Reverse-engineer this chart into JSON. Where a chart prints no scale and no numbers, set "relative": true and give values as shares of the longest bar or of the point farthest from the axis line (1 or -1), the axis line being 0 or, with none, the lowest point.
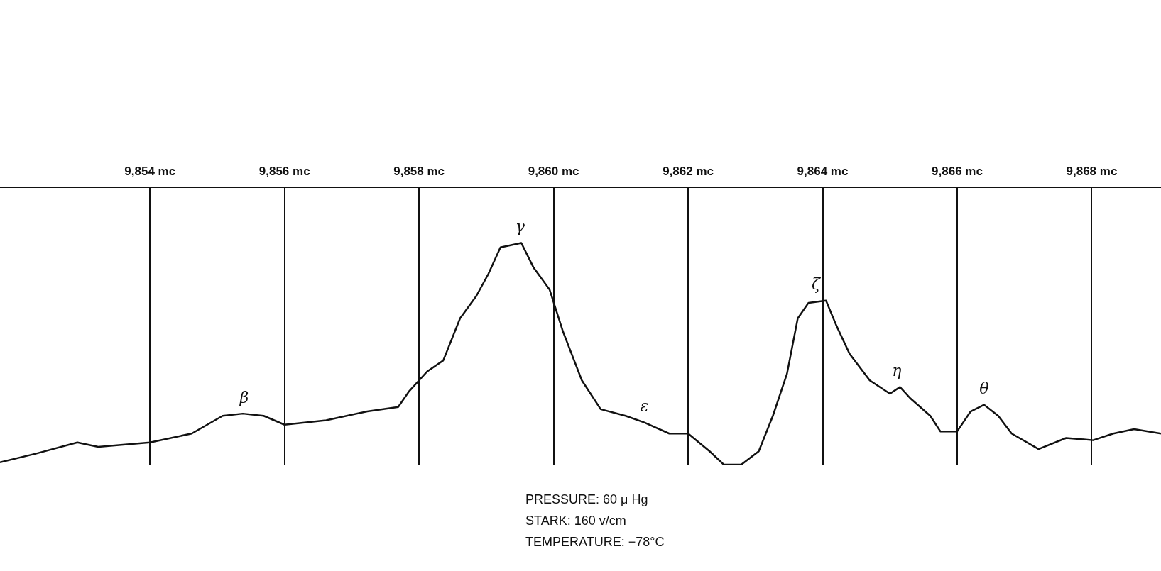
{
  "chart_data": {
    "type": "line",
    "relative": true,
    "tick_labels": "x",
    "grid": "x",
    "legend": false,
    "marker": "none",
    "line_style": "solid",
    "xlim": [
      9851.77,
      9869.03
    ],
    "xticks": [
      {
        "value": 9854,
        "label": "9,854 mc"
      },
      {
        "value": 9856,
        "label": "9,856 mc"
      },
      {
        "value": 9858,
        "label": "9,858 mc"
      },
      {
        "value": 9860,
        "label": "9,860 mc"
      },
      {
        "value": 9862,
        "label": "9,862 mc"
      },
      {
        "value": 9864,
        "label": "9,864 mc"
      },
      {
        "value": 9866,
        "label": "9,866 mc"
      },
      {
        "value": 9868,
        "label": "9,868 mc"
      }
    ],
    "series": [
      {
        "color": "#111111",
        "x": [
          9851.77,
          9852.31,
          9852.92,
          9853.23,
          9854.0,
          9854.62,
          9855.08,
          9855.38,
          9855.69,
          9856.0,
          9856.62,
          9857.23,
          9857.69,
          9857.85,
          9858.12,
          9858.36,
          9858.61,
          9858.85,
          9859.03,
          9859.21,
          9859.52,
          9859.7,
          9859.94,
          9860.14,
          9860.42,
          9860.7,
          9861.07,
          9861.35,
          9861.72,
          9862.0,
          9862.32,
          9862.53,
          9862.79,
          9863.05,
          9863.26,
          9863.47,
          9863.63,
          9863.79,
          9864.05,
          9864.2,
          9864.4,
          9864.7,
          9865.0,
          9865.15,
          9865.3,
          9865.6,
          9865.75,
          9866.0,
          9866.2,
          9866.4,
          9866.61,
          9866.81,
          9867.21,
          9867.62,
          9868.02,
          9868.32,
          9868.63,
          9869.03
        ],
        "values": [
          0.01,
          0.05,
          0.1,
          0.08,
          0.1,
          0.14,
          0.22,
          0.23,
          0.22,
          0.18,
          0.2,
          0.24,
          0.26,
          0.33,
          0.42,
          0.47,
          0.66,
          0.76,
          0.86,
          0.98,
          1,
          0.89,
          0.79,
          0.6,
          0.38,
          0.25,
          0.22,
          0.19,
          0.14,
          0.14,
          0.06,
          0,
          0,
          0.06,
          0.22,
          0.41,
          0.66,
          0.73,
          0.74,
          0.63,
          0.5,
          0.38,
          0.32,
          0.35,
          0.3,
          0.22,
          0.15,
          0.15,
          0.24,
          0.27,
          0.22,
          0.14,
          0.07,
          0.12,
          0.11,
          0.14,
          0.16,
          0.14
        ]
      }
    ],
    "annotations": [
      {
        "text": "β",
        "x": 9855.4,
        "y": 0.23
      },
      {
        "text": "γ",
        "x": 9859.5,
        "y": 1
      },
      {
        "text": "ε",
        "x": 9861.35,
        "y": 0.19
      },
      {
        "text": "ζ",
        "x": 9863.9,
        "y": 0.74
      },
      {
        "text": "η",
        "x": 9865.1,
        "y": 0.35
      },
      {
        "text": "θ",
        "x": 9866.4,
        "y": 0.27
      },
      "PRESSURE: 60 μ Hg",
      "STARK: 160 v/cm",
      "TEMPERATURE: −78°C"
    ]
  }
}
